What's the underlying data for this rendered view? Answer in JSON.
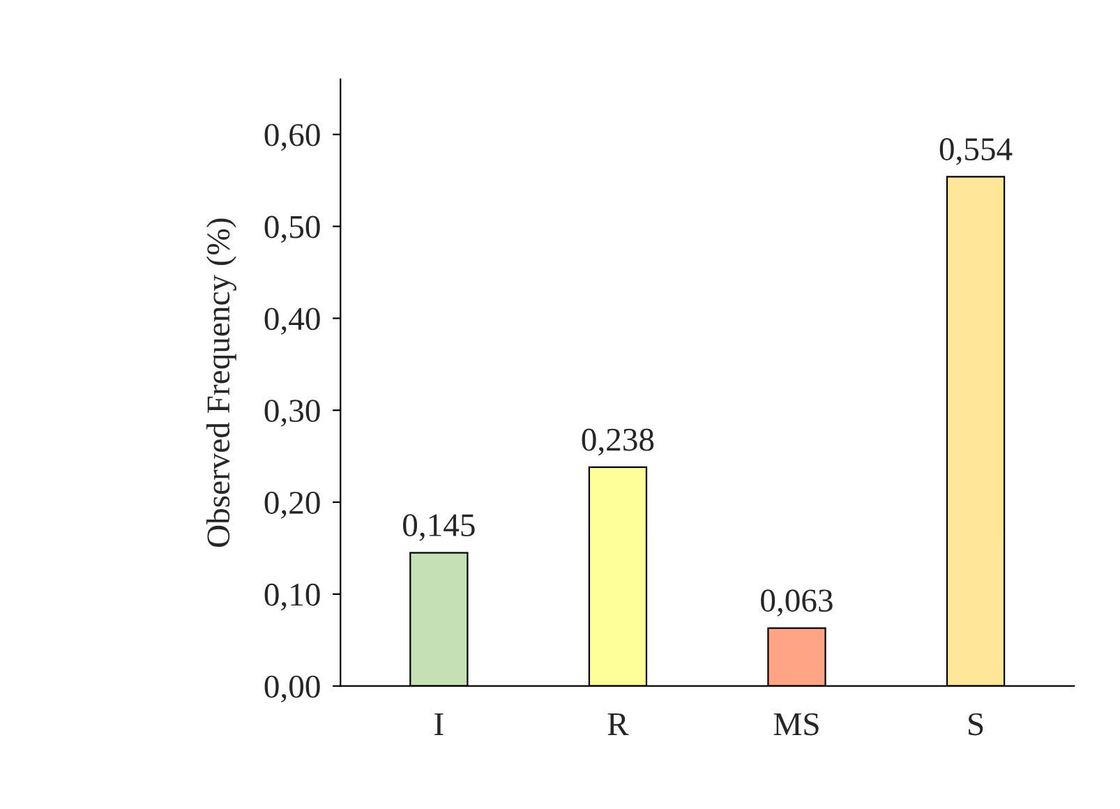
{
  "chart_data": {
    "type": "bar",
    "ylabel": "Observed Frequency (%)",
    "categories": [
      "I",
      "R",
      "MS",
      "S"
    ],
    "values": [
      0.145,
      0.238,
      0.063,
      0.554
    ],
    "colors": [
      "#c5e0b4",
      "#ffff99",
      "#ffa586",
      "#ffe699"
    ],
    "value_labels": [
      "0,145",
      "0,238",
      "0,063",
      "0,554"
    ],
    "ylim": [
      0,
      0.66
    ],
    "yticks": [
      {
        "value": 0,
        "label": "0,00"
      },
      {
        "value": 0.1,
        "label": "0,10"
      },
      {
        "value": 0.2,
        "label": "0,20"
      },
      {
        "value": 0.3,
        "label": "0,30"
      },
      {
        "value": 0.4,
        "label": "0,40"
      },
      {
        "value": 0.5,
        "label": "0,50"
      },
      {
        "value": 0.6,
        "label": "0,60"
      }
    ],
    "grid": false,
    "legend": false
  }
}
